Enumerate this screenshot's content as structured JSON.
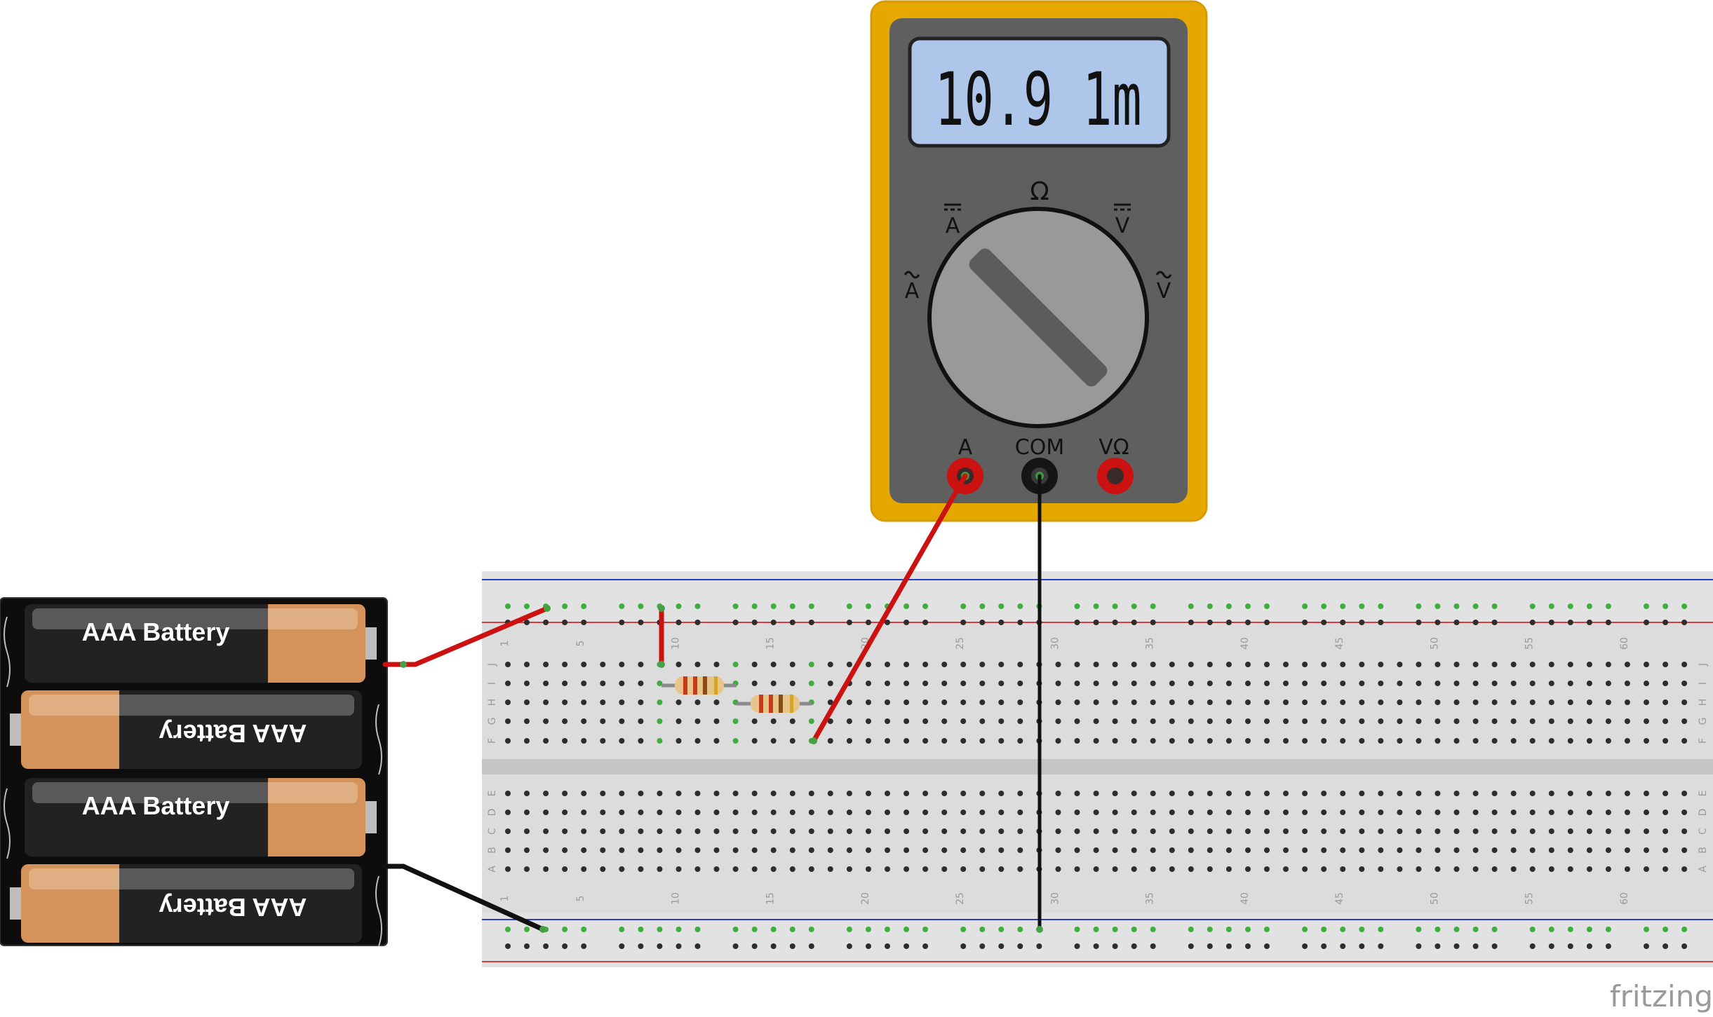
{
  "multimeter": {
    "display": "10.9 1m",
    "dial_labels": {
      "ohm": "Ω",
      "dc_amps": "A",
      "dc_volts": "V",
      "ac_amps": "A",
      "ac_volts": "V"
    },
    "port_labels": {
      "amps": "A",
      "common": "COM",
      "volt_ohm": "VΩ"
    }
  },
  "battery_pack": {
    "cell_label": "AAA Battery",
    "cells": 4
  },
  "breadboard": {
    "columns": 63,
    "row_letters_top": [
      "J",
      "I",
      "H",
      "G",
      "F"
    ],
    "row_letters_bottom": [
      "E",
      "D",
      "C",
      "B",
      "A"
    ],
    "column_numbers": [
      "1",
      "5",
      "10",
      "15",
      "20",
      "25",
      "30",
      "35",
      "40",
      "45",
      "50",
      "55",
      "60"
    ]
  },
  "components": {
    "resistors": [
      "resistor-1",
      "resistor-2"
    ],
    "wires": [
      "red",
      "red",
      "red",
      "black",
      "black"
    ]
  },
  "colors": {
    "meter_body": "#e5a800",
    "meter_face": "#5f5f5f",
    "lcd_bg": "#adc6ea",
    "wire_red": "#cc1111",
    "wire_black": "#111111",
    "battery_copper": "#d4935a",
    "breadboard": "#dcdcdc",
    "rail_red": "#d63a3a",
    "rail_blue": "#2e3ec0"
  },
  "watermark": "fritzing"
}
